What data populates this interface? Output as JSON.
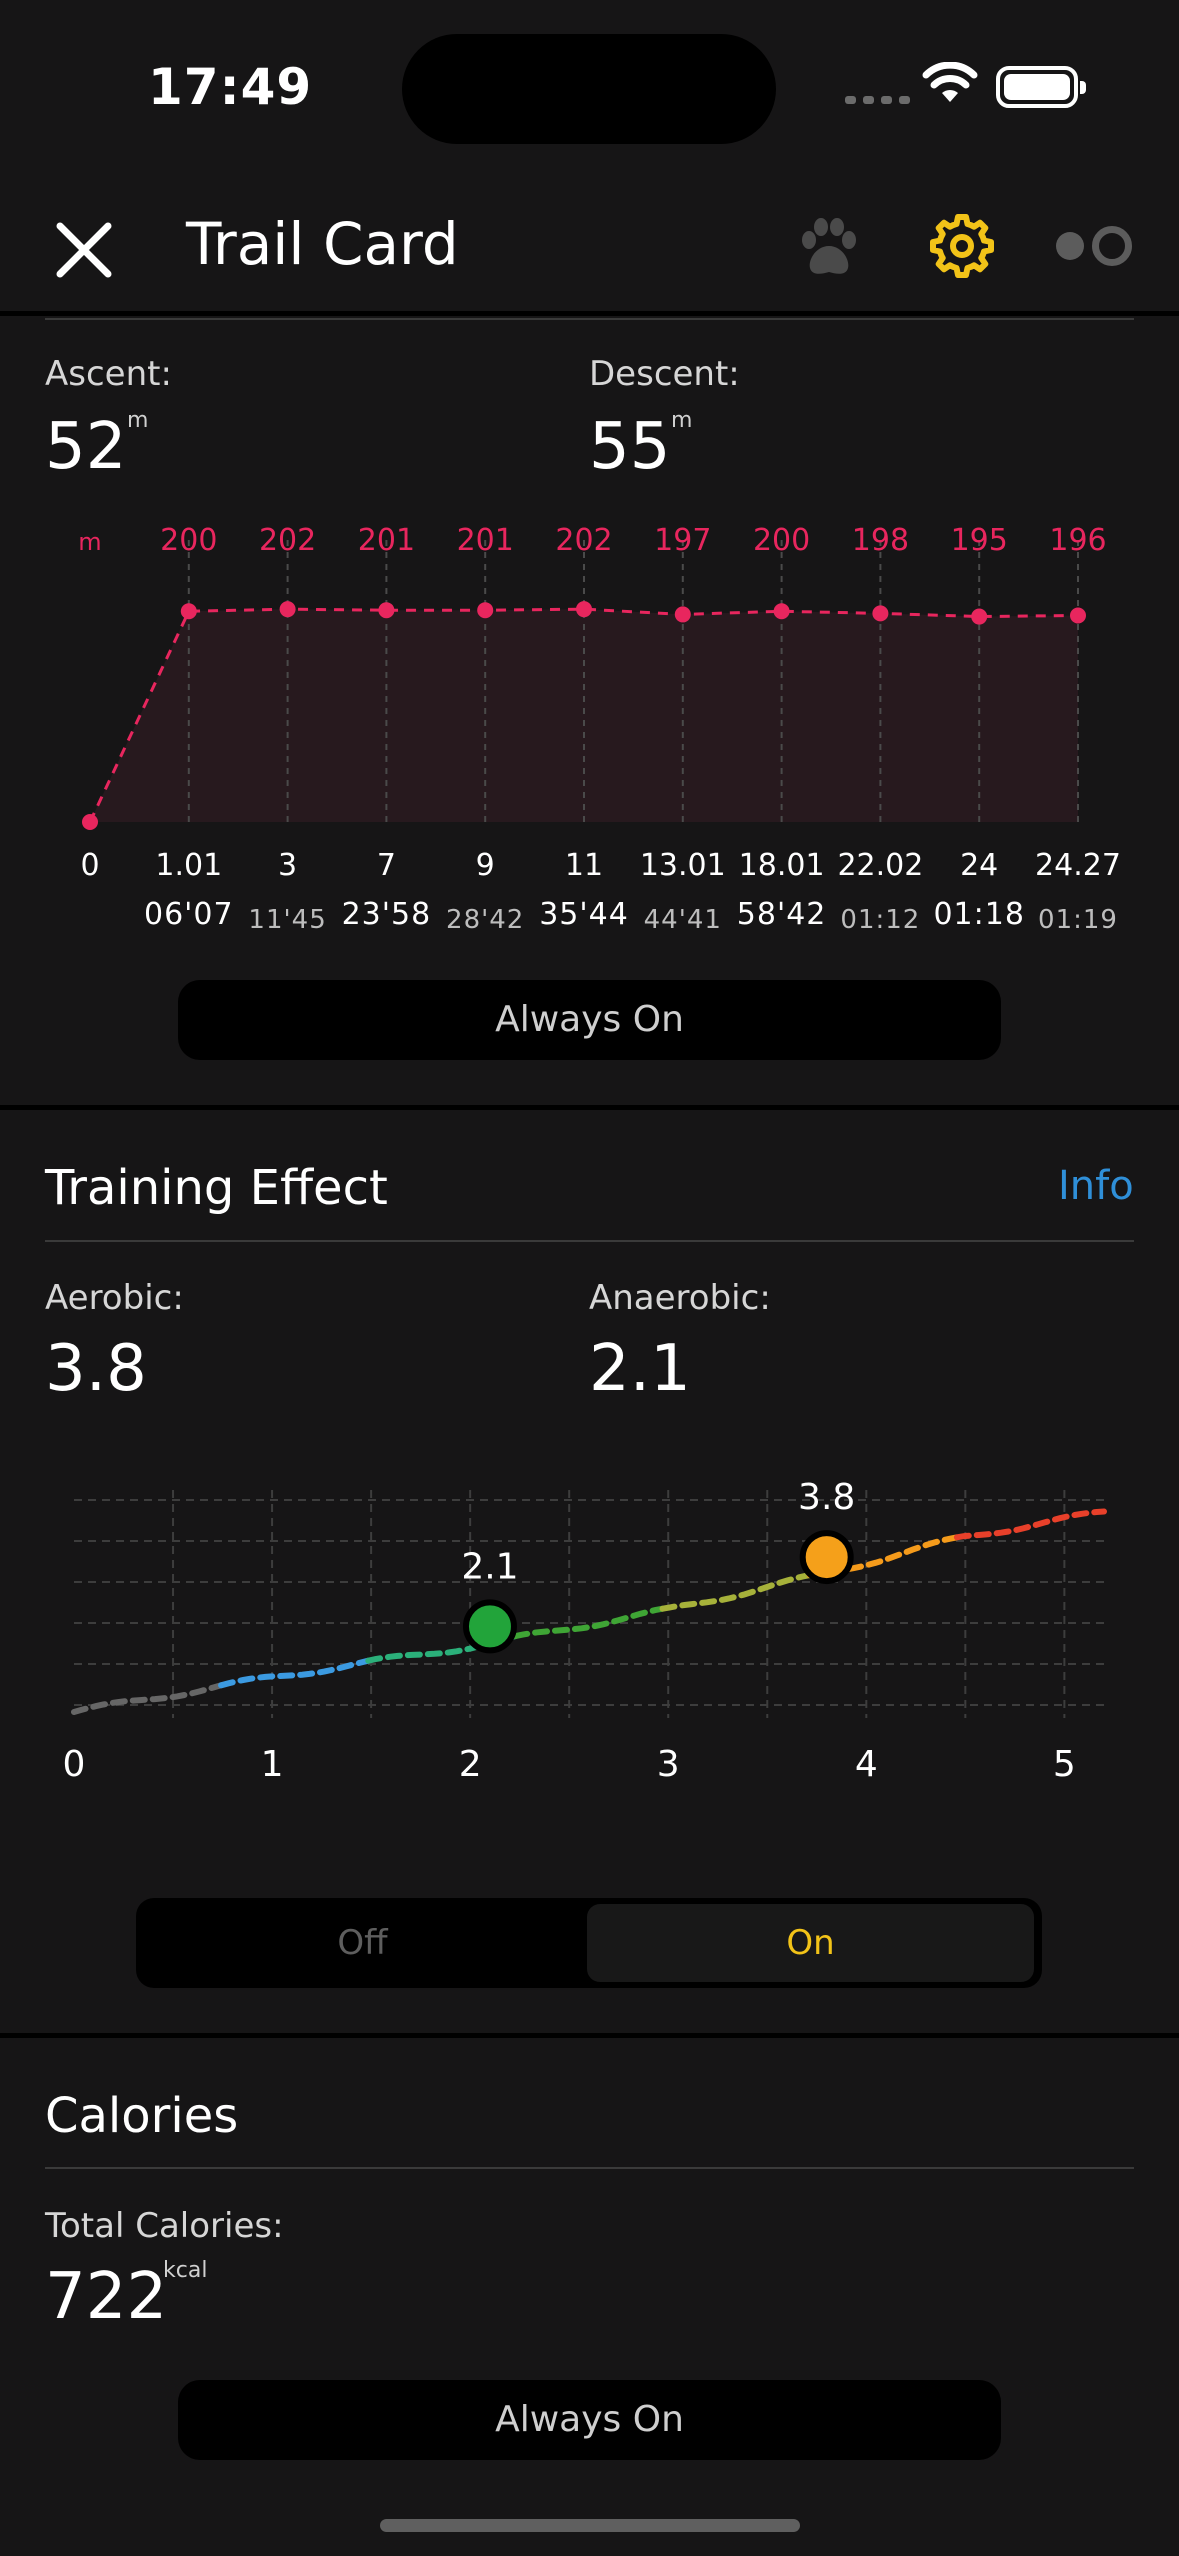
{
  "status_bar": {
    "time": "17:49"
  },
  "nav": {
    "title": "Trail Card"
  },
  "elevation": {
    "ascent_label": "Ascent:",
    "ascent_value": "52",
    "ascent_unit": "m",
    "descent_label": "Descent:",
    "descent_value": "55",
    "descent_unit": "m",
    "pill_label": "Always On"
  },
  "chart_data": [
    {
      "type": "line",
      "title": "",
      "y_unit_label": "m",
      "x": [
        0,
        1.01,
        3,
        7,
        9,
        11,
        13.01,
        18.01,
        22.02,
        24,
        24.27
      ],
      "x_tick_labels": [
        "0",
        "1.01",
        "3",
        "7",
        "9",
        "11",
        "13.01",
        "18.01",
        "22.02",
        "24",
        "24.27"
      ],
      "time_labels": [
        "",
        "06'07",
        "11'45",
        "23'58",
        "28'42",
        "35'44",
        "44'41",
        "58'42",
        "01:12",
        "01:18",
        "01:19"
      ],
      "y": [
        0,
        200,
        202,
        201,
        201,
        202,
        197,
        200,
        198,
        195,
        196
      ],
      "y_labels": [
        "",
        "200",
        "202",
        "201",
        "201",
        "202",
        "197",
        "200",
        "198",
        "195",
        "196"
      ],
      "color": "#e8265e",
      "grid": "vertical dashed"
    },
    {
      "type": "line",
      "title": "",
      "x_ticks": [
        "0",
        "1",
        "2",
        "3",
        "4",
        "5"
      ],
      "xlim": [
        0,
        5.2
      ],
      "ylim": [
        0,
        5.2
      ],
      "grid": true,
      "curve_y_at_x": [
        0.0,
        0.85,
        1.6,
        2.5,
        3.4,
        4.3,
        4.9
      ],
      "curve_x": [
        0,
        1,
        2,
        3,
        3.8,
        4.5,
        5.2
      ],
      "color_stops": [
        "#666666",
        "#3b9ae1",
        "#2bb07a",
        "#3fa535",
        "#a6b13a",
        "#f59b1b",
        "#e8402a"
      ],
      "markers": [
        {
          "label": "2.1",
          "x": 2.1,
          "y": 2.1,
          "color": "#22a43a"
        },
        {
          "label": "3.8",
          "x": 3.8,
          "y": 3.8,
          "color": "#f5a01a"
        }
      ]
    }
  ],
  "training": {
    "title": "Training Effect",
    "info_label": "Info",
    "aerobic_label": "Aerobic:",
    "aerobic_value": "3.8",
    "anaerobic_label": "Anaerobic:",
    "anaerobic_value": "2.1",
    "segment_off": "Off",
    "segment_on": "On",
    "segment_selected": "On"
  },
  "calories": {
    "title": "Calories",
    "total_label": "Total Calories:",
    "total_value": "722",
    "unit": "kcal",
    "pill_label": "Always On"
  },
  "colors": {
    "background": "#161516",
    "accent_yellow": "#f2c318",
    "elevation_pink": "#e8265e",
    "info_blue": "#2f8fd8"
  },
  "icons": [
    "close-icon",
    "paw-icon",
    "gear-icon",
    "display-toggle-icon",
    "wifi-icon",
    "battery-icon"
  ]
}
